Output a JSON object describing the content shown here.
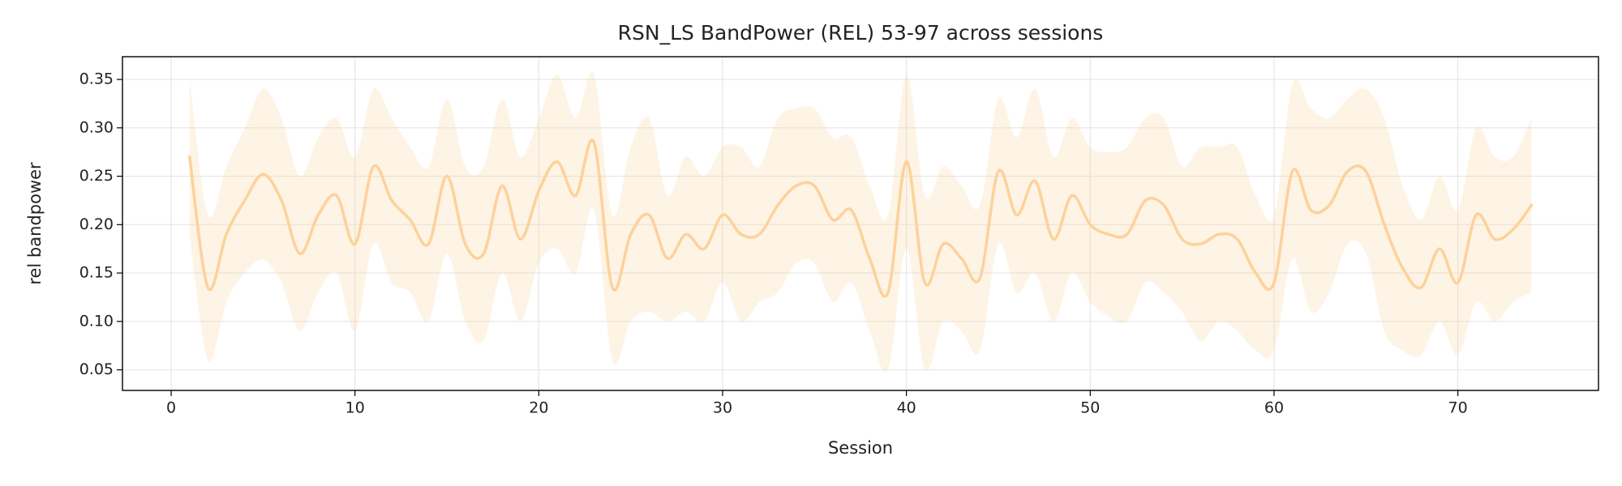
{
  "chart_data": {
    "type": "line",
    "title": "RSN_LS BandPower (REL) 53-97 across sessions",
    "x_label": "Session",
    "y_label": "rel bandpower",
    "x": [
      1,
      2,
      3,
      4,
      5,
      6,
      7,
      8,
      9,
      10,
      11,
      12,
      13,
      14,
      15,
      16,
      17,
      18,
      19,
      20,
      21,
      22,
      23,
      24,
      25,
      26,
      27,
      28,
      29,
      30,
      31,
      32,
      33,
      34,
      35,
      36,
      37,
      38,
      39,
      40,
      41,
      42,
      43,
      44,
      45,
      46,
      47,
      48,
      49,
      50,
      51,
      52,
      53,
      54,
      55,
      56,
      57,
      58,
      59,
      60,
      61,
      62,
      63,
      64,
      65,
      66,
      67,
      68,
      69,
      70,
      71,
      72,
      73,
      74
    ],
    "series": [
      {
        "color": "#fdd29b",
        "values": [
          0.27,
          0.135,
          0.19,
          0.225,
          0.252,
          0.225,
          0.17,
          0.21,
          0.23,
          0.18,
          0.26,
          0.225,
          0.205,
          0.18,
          0.25,
          0.18,
          0.17,
          0.24,
          0.185,
          0.235,
          0.265,
          0.23,
          0.285,
          0.135,
          0.19,
          0.21,
          0.165,
          0.19,
          0.175,
          0.21,
          0.19,
          0.19,
          0.22,
          0.24,
          0.24,
          0.205,
          0.215,
          0.165,
          0.13,
          0.265,
          0.14,
          0.18,
          0.165,
          0.145,
          0.255,
          0.21,
          0.245,
          0.185,
          0.23,
          0.2,
          0.19,
          0.19,
          0.225,
          0.22,
          0.185,
          0.18,
          0.19,
          0.185,
          0.15,
          0.14,
          0.255,
          0.215,
          0.22,
          0.255,
          0.255,
          0.2,
          0.155,
          0.135,
          0.175,
          0.14,
          0.21,
          0.185,
          0.195,
          0.22
        ]
      }
    ],
    "band": {
      "color": "#fdd29b",
      "upper": [
        0.35,
        0.21,
        0.26,
        0.3,
        0.34,
        0.31,
        0.25,
        0.29,
        0.31,
        0.27,
        0.34,
        0.31,
        0.28,
        0.26,
        0.33,
        0.26,
        0.26,
        0.33,
        0.27,
        0.31,
        0.355,
        0.31,
        0.355,
        0.21,
        0.28,
        0.31,
        0.23,
        0.27,
        0.25,
        0.28,
        0.28,
        0.26,
        0.31,
        0.32,
        0.32,
        0.29,
        0.29,
        0.24,
        0.21,
        0.355,
        0.23,
        0.26,
        0.24,
        0.22,
        0.33,
        0.29,
        0.34,
        0.27,
        0.31,
        0.28,
        0.275,
        0.28,
        0.31,
        0.31,
        0.26,
        0.28,
        0.28,
        0.28,
        0.23,
        0.21,
        0.345,
        0.32,
        0.31,
        0.33,
        0.34,
        0.31,
        0.24,
        0.205,
        0.25,
        0.215,
        0.3,
        0.27,
        0.27,
        0.31
      ],
      "lower": [
        0.19,
        0.06,
        0.12,
        0.15,
        0.164,
        0.14,
        0.09,
        0.13,
        0.15,
        0.09,
        0.18,
        0.14,
        0.13,
        0.1,
        0.17,
        0.1,
        0.08,
        0.15,
        0.1,
        0.16,
        0.175,
        0.15,
        0.215,
        0.06,
        0.1,
        0.11,
        0.1,
        0.11,
        0.1,
        0.14,
        0.1,
        0.12,
        0.13,
        0.16,
        0.16,
        0.12,
        0.14,
        0.09,
        0.05,
        0.175,
        0.05,
        0.1,
        0.09,
        0.07,
        0.18,
        0.13,
        0.15,
        0.1,
        0.15,
        0.12,
        0.105,
        0.1,
        0.14,
        0.13,
        0.11,
        0.08,
        0.1,
        0.09,
        0.07,
        0.07,
        0.165,
        0.11,
        0.13,
        0.18,
        0.17,
        0.09,
        0.07,
        0.065,
        0.1,
        0.065,
        0.12,
        0.1,
        0.12,
        0.13
      ]
    },
    "xlim": [
      -2.65,
      77.65
    ],
    "ylim": [
      0.0287,
      0.3735
    ],
    "xticks": [
      0,
      10,
      20,
      30,
      40,
      50,
      60,
      70
    ],
    "yticks": [
      {
        "value": 0.05,
        "label": "0.05"
      },
      {
        "value": 0.1,
        "label": "0.10"
      },
      {
        "value": 0.15,
        "label": "0.15"
      },
      {
        "value": 0.2,
        "label": "0.20"
      },
      {
        "value": 0.25,
        "label": "0.25"
      },
      {
        "value": 0.3,
        "label": "0.30"
      },
      {
        "value": 0.35,
        "label": "0.35"
      }
    ],
    "grid": true
  }
}
